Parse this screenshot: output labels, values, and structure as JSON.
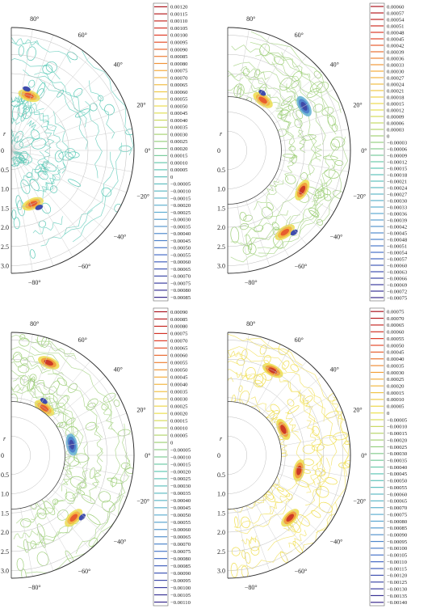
{
  "chart_data": [
    {
      "type": "heatmap",
      "subtype": "polar contour plot (half-annulus)",
      "r_label": "r",
      "r_ticks": [
        "0",
        "0.5",
        "1.0",
        "1.5",
        "2.0",
        "2.5",
        "3.0"
      ],
      "angle_ticks": [
        "80°",
        "60°",
        "40°",
        "20°",
        "0°",
        "−20°",
        "−40°",
        "−60°",
        "−80°"
      ],
      "colorbar": [
        "0.00120",
        "0.00115",
        "0.00110",
        "0.00105",
        "0.00100",
        "0.00095",
        "0.00090",
        "0.00085",
        "0.00080",
        "0.00075",
        "0.00070",
        "0.00065",
        "0.00060",
        "0.00055",
        "0.00050",
        "0.00045",
        "0.00040",
        "0.00035",
        "0.00030",
        "0.00025",
        "0.00020",
        "0.00015",
        "0.00010",
        "0.00005",
        "0",
        "−0.00005",
        "−0.00010",
        "−0.00015",
        "−0.00020",
        "−0.00025",
        "−0.00030",
        "−0.00035",
        "−0.00040",
        "−0.00045",
        "−0.00050",
        "−0.00055",
        "−0.00060",
        "−0.00065",
        "−0.00070",
        "−0.00075",
        "−0.00080",
        "−0.00085"
      ],
      "inner_radius": 0,
      "dominant_color": "#59c9b6",
      "hotspots": [
        {
          "r": 1.5,
          "theta": 72,
          "sign": "mixed"
        },
        {
          "r": 1.5,
          "theta": -68,
          "sign": "mixed"
        }
      ]
    },
    {
      "type": "heatmap",
      "subtype": "polar contour plot (half-annulus)",
      "r_label": "r",
      "r_ticks": [
        "0",
        "0.5",
        "1.0",
        "1.5",
        "2.0",
        "2.5",
        "3.0"
      ],
      "angle_ticks": [
        "80°",
        "60°",
        "40°",
        "20°",
        "0°",
        "−20°",
        "−40°",
        "−60°",
        "−80°"
      ],
      "colorbar": [
        "0.00060",
        "0.00057",
        "0.00054",
        "0.00051",
        "0.00048",
        "0.00045",
        "0.00042",
        "0.00039",
        "0.00036",
        "0.00033",
        "0.00030",
        "0.00027",
        "0.00024",
        "0.00021",
        "0.00018",
        "0.00015",
        "0.00012",
        "0.00009",
        "0.00006",
        "0.00003",
        "0",
        "−0.00003",
        "−0.00006",
        "−0.00009",
        "−0.00012",
        "−0.00015",
        "−0.00018",
        "−0.00021",
        "−0.00024",
        "−0.00027",
        "−0.00030",
        "−0.00033",
        "−0.00036",
        "−0.00039",
        "−0.00042",
        "−0.00045",
        "−0.00048",
        "−0.00051",
        "−0.00054",
        "−0.00057",
        "−0.00060",
        "−0.00063",
        "−0.00066",
        "−0.00069",
        "−0.00072",
        "−0.00075"
      ],
      "inner_radius": 1.4,
      "dominant_color": "#9fcf7a",
      "hotspots": [
        {
          "r": 2.3,
          "theta": 30,
          "sign": "negative"
        },
        {
          "r": 1.6,
          "theta": 55,
          "sign": "mixed"
        },
        {
          "r": 2.2,
          "theta": -28,
          "sign": "positive"
        },
        {
          "r": 2.6,
          "theta": -55,
          "sign": "mixed"
        }
      ]
    },
    {
      "type": "heatmap",
      "subtype": "polar contour plot (half-annulus)",
      "r_label": "r",
      "r_ticks": [
        "0",
        "0.5",
        "1.0",
        "1.5",
        "2.0",
        "2.5",
        "3.0"
      ],
      "angle_ticks": [
        "80°",
        "60°",
        "40°",
        "20°",
        "0°",
        "−20°",
        "−40°",
        "−60°",
        "−80°"
      ],
      "colorbar": [
        "0.00090",
        "0.00085",
        "0.00080",
        "0.00075",
        "0.00070",
        "0.00065",
        "0.00060",
        "0.00055",
        "0.00050",
        "0.00045",
        "0.00040",
        "0.00035",
        "0.00030",
        "0.00025",
        "0.00020",
        "0.00015",
        "0.00010",
        "0.00005",
        "0",
        "−0.00005",
        "−0.00010",
        "−0.00015",
        "−0.00020",
        "−0.00025",
        "−0.00030",
        "−0.00035",
        "−0.00040",
        "−0.00045",
        "−0.00050",
        "−0.00055",
        "−0.00060",
        "−0.00065",
        "−0.00070",
        "−0.00075",
        "−0.00080",
        "−0.00085",
        "−0.00090",
        "−0.00095",
        "−0.00100",
        "−0.00105",
        "−0.00110"
      ],
      "inner_radius": 1.4,
      "dominant_color": "#9fcf7a",
      "hotspots": [
        {
          "r": 1.6,
          "theta": 10,
          "sign": "negative"
        },
        {
          "r": 1.5,
          "theta": 55,
          "sign": "mixed"
        },
        {
          "r": 2.6,
          "theta": 68,
          "sign": "positive"
        },
        {
          "r": 2.3,
          "theta": -45,
          "sign": "mixed"
        }
      ]
    },
    {
      "type": "heatmap",
      "subtype": "polar contour plot (half-annulus)",
      "r_label": "r",
      "r_ticks": [
        "0",
        "0.5",
        "1.0",
        "1.5",
        "2.0",
        "2.5",
        "3.0"
      ],
      "angle_ticks": [
        "80°",
        "60°",
        "40°",
        "20°",
        "0°",
        "−20°",
        "−40°",
        "−60°",
        "−80°"
      ],
      "colorbar": [
        "0.00075",
        "0.00070",
        "0.00065",
        "0.00060",
        "0.00055",
        "0.00050",
        "0.00045",
        "0.00040",
        "0.00035",
        "0.00030",
        "0.00025",
        "0.00020",
        "0.00015",
        "0.00010",
        "0.00005",
        "0",
        "−0.00005",
        "−0.00010",
        "−0.00015",
        "−0.00020",
        "−0.00025",
        "−0.00030",
        "−0.00035",
        "−0.00040",
        "−0.00045",
        "−0.00050",
        "−0.00055",
        "−0.00060",
        "−0.00065",
        "−0.00070",
        "−0.00075",
        "−0.00080",
        "−0.00085",
        "−0.00090",
        "−0.00095",
        "−0.00100",
        "−0.00105",
        "−0.00110",
        "−0.00115",
        "−0.00120",
        "−0.00125",
        "−0.00130",
        "−0.00135",
        "−0.00140"
      ],
      "inner_radius": 1.4,
      "dominant_color": "#f0df52",
      "hotspots": [
        {
          "r": 1.9,
          "theta": -12,
          "sign": "positive"
        },
        {
          "r": 1.6,
          "theta": 25,
          "sign": "positive"
        },
        {
          "r": 2.3,
          "theta": -45,
          "sign": "positive"
        },
        {
          "r": 2.5,
          "theta": 62,
          "sign": "positive"
        }
      ]
    }
  ]
}
